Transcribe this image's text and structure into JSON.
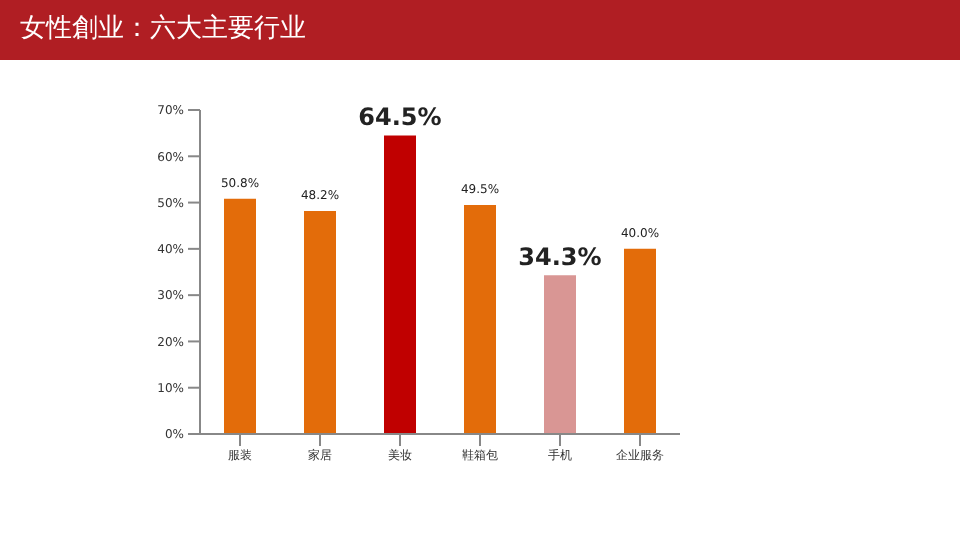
{
  "chart_data": {
    "type": "bar",
    "title": "女性創业：六大主要行业",
    "categories": [
      "服装",
      "家居",
      "美妆",
      "鞋箱包",
      "手机",
      "企业服务"
    ],
    "values": [
      50.8,
      48.2,
      64.5,
      49.5,
      34.3,
      40.0
    ],
    "colors": [
      "#e36c0a",
      "#e36c0a",
      "#c00000",
      "#e36c0a",
      "#d99694",
      "#e36c0a"
    ],
    "value_labels": [
      "50.8%",
      "48.2%",
      "64.5%",
      "49.5%",
      "34.3%",
      "40.0%"
    ],
    "ylim": [
      0,
      70
    ],
    "yticks": [
      {
        "value": 0,
        "label": "0%"
      },
      {
        "value": 10,
        "label": "10%"
      },
      {
        "value": 20,
        "label": "20%"
      },
      {
        "value": 30,
        "label": "30%"
      },
      {
        "value": 40,
        "label": "40%"
      },
      {
        "value": 50,
        "label": "50%"
      },
      {
        "value": 60,
        "label": "60%"
      },
      {
        "value": 70,
        "label": "70%"
      }
    ],
    "grid": false,
    "legend": false
  }
}
